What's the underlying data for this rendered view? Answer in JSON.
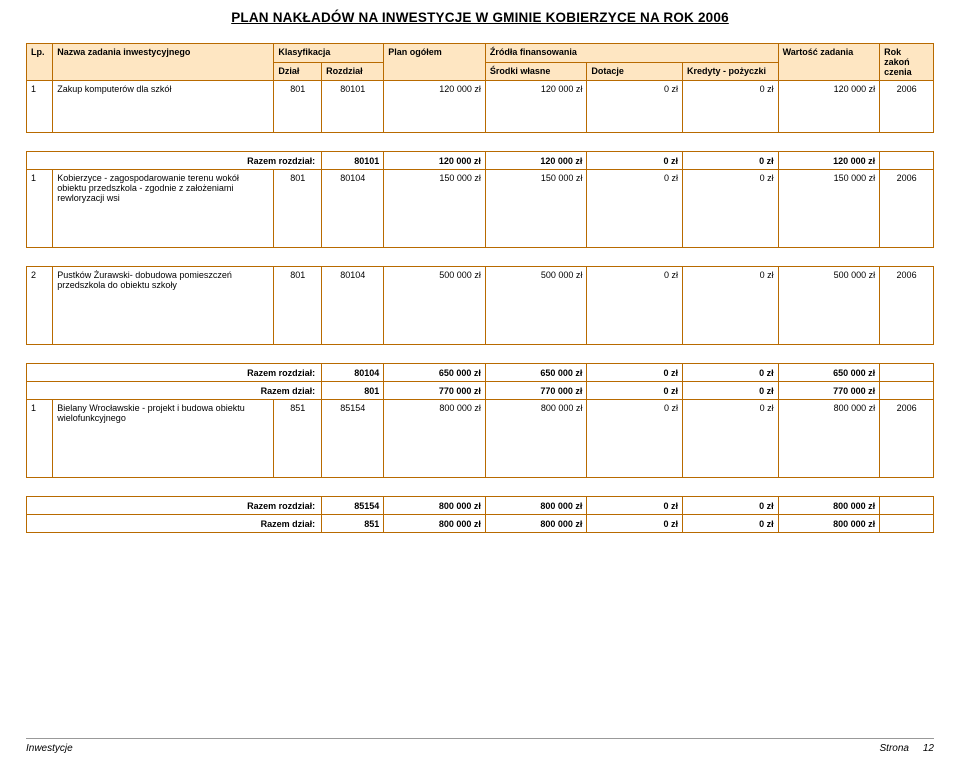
{
  "title": "PLAN NAKŁADÓW NA INWESTYCJE W GMINIE KOBIERZYCE  NA ROK 2006",
  "headers": {
    "lp": "Lp.",
    "name": "Nazwa zadania inwestycyjnego",
    "klas": "Klasyfikacja",
    "dzial": "Dział",
    "rozdzial": "Rozdział",
    "plan": "Plan ogółem",
    "zrodla": "Źródła finansowania",
    "sw": "Środki własne",
    "dot": "Dotacje",
    "kp": "Kredyty - pożyczki",
    "wz": "Wartość zadania",
    "rok": "Rok zakoń czenia"
  },
  "sections": [
    {
      "rows": [
        {
          "lp": "1",
          "name": "Zakup komputerów dla szkół",
          "dzial": "801",
          "rozdzial": "80101",
          "plan": "120 000 zł",
          "sw": "120 000 zł",
          "dot": "0 zł",
          "kp": "0 zł",
          "wz": "120 000 zł",
          "rok": "2006"
        }
      ],
      "summary": []
    },
    {
      "rows": [
        {
          "lp": "1",
          "name": "Kobierzyce - zagospodarowanie terenu wokół obiektu  przedszkola - zgodnie z założeniami rewloryzacji wsi",
          "dzial": "801",
          "rozdzial": "80104",
          "plan": "150 000 zł",
          "sw": "150 000 zł",
          "dot": "0 zł",
          "kp": "0 zł",
          "wz": "150 000 zł",
          "rok": "2006"
        }
      ],
      "summary": [
        {
          "label": "Razem rozdział:",
          "rozdzial": "80101",
          "plan": "120 000 zł",
          "sw": "120 000 zł",
          "dot": "0 zł",
          "kp": "0 zł",
          "wz": "120 000 zł"
        }
      ]
    },
    {
      "rows": [
        {
          "lp": "2",
          "name": "Pustków Żurawski- dobudowa pomieszczeń przedszkola do obiektu szkoły",
          "dzial": "801",
          "rozdzial": "80104",
          "plan": "500 000 zł",
          "sw": "500 000 zł",
          "dot": "0 zł",
          "kp": "0 zł",
          "wz": "500 000 zł",
          "rok": "2006"
        }
      ],
      "summary": []
    },
    {
      "rows": [
        {
          "lp": "1",
          "name": "Bielany Wrocławskie - projekt i budowa obiektu wielofunkcyjnego",
          "dzial": "851",
          "rozdzial": "85154",
          "plan": "800 000 zł",
          "sw": "800 000 zł",
          "dot": "0 zł",
          "kp": "0 zł",
          "wz": "800 000 zł",
          "rok": "2006"
        }
      ],
      "summary": [
        {
          "label": "Razem rozdział:",
          "rozdzial": "80104",
          "plan": "650 000 zł",
          "sw": "650 000 zł",
          "dot": "0 zł",
          "kp": "0 zł",
          "wz": "650 000 zł"
        },
        {
          "label": "Razem dział:",
          "rozdzial": "801",
          "plan": "770 000 zł",
          "sw": "770 000 zł",
          "dot": "0 zł",
          "kp": "0 zł",
          "wz": "770 000 zł"
        }
      ]
    },
    {
      "rows": [],
      "summary": [
        {
          "label": "Razem rozdział:",
          "rozdzial": "85154",
          "plan": "800 000 zł",
          "sw": "800 000 zł",
          "dot": "0 zł",
          "kp": "0 zł",
          "wz": "800 000 zł"
        },
        {
          "label": "Razem dział:",
          "rozdzial": "851",
          "plan": "800 000 zł",
          "sw": "800 000 zł",
          "dot": "0 zł",
          "kp": "0 zł",
          "wz": "800 000 zł"
        }
      ]
    }
  ],
  "footer": {
    "left": "Inwestycje",
    "right_label": "Strona",
    "page": "12"
  },
  "colors": {
    "border": "#b86a00",
    "header_bg": "#fee6c2",
    "text": "#000000",
    "page_bg": "#ffffff"
  }
}
